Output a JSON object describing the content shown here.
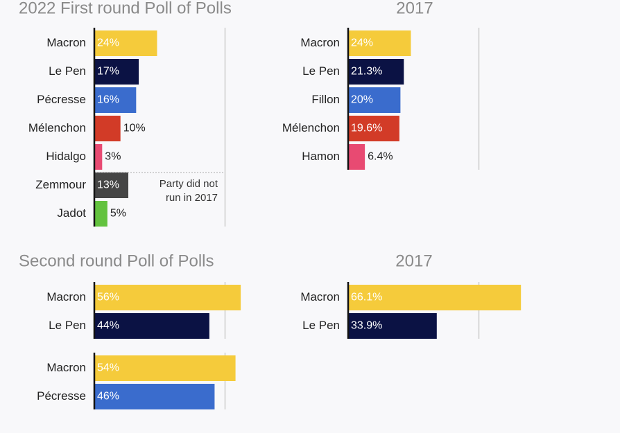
{
  "chart_data": [
    {
      "type": "bar",
      "orientation": "horizontal",
      "title": "2022 First round Poll of Polls",
      "categories": [
        "Macron",
        "Le Pen",
        "Pécresse",
        "Mélenchon",
        "Hidalgo",
        "Zemmour",
        "Jadot"
      ],
      "values": [
        24,
        17,
        16,
        10,
        3,
        13,
        5
      ],
      "value_labels": [
        "24%",
        "17%",
        "16%",
        "10%",
        "3%",
        "13%",
        "5%"
      ],
      "colors": [
        "#f5cb3b",
        "#0b1244",
        "#3a6ccd",
        "#d23b27",
        "#e84a72",
        "#454545",
        "#63c23e"
      ],
      "xlim": [
        0,
        100
      ],
      "reference_line": 50,
      "annotation": [
        "Party did not",
        "run in 2017"
      ]
    },
    {
      "type": "bar",
      "orientation": "horizontal",
      "title": "2017",
      "categories": [
        "Macron",
        "Le Pen",
        "Fillon",
        "Mélenchon",
        "Hamon"
      ],
      "values": [
        24,
        21.3,
        20,
        19.6,
        6.4
      ],
      "value_labels": [
        "24%",
        "21.3%",
        "20%",
        "19.6%",
        "6.4%"
      ],
      "colors": [
        "#f5cb3b",
        "#0b1244",
        "#3a6ccd",
        "#d23b27",
        "#e84a72"
      ],
      "xlim": [
        0,
        100
      ],
      "reference_line": 50
    },
    {
      "type": "bar",
      "orientation": "horizontal",
      "title": "Second round Poll of Polls",
      "categories": [
        "Macron",
        "Le Pen"
      ],
      "values": [
        56,
        44
      ],
      "value_labels": [
        "56%",
        "44%"
      ],
      "colors": [
        "#f5cb3b",
        "#0b1244"
      ],
      "xlim": [
        0,
        100
      ],
      "reference_line": 50
    },
    {
      "type": "bar",
      "orientation": "horizontal",
      "categories": [
        "Macron",
        "Pécresse"
      ],
      "values": [
        54,
        46
      ],
      "value_labels": [
        "54%",
        "46%"
      ],
      "colors": [
        "#f5cb3b",
        "#3a6ccd"
      ],
      "xlim": [
        0,
        100
      ],
      "reference_line": 50
    },
    {
      "type": "bar",
      "orientation": "horizontal",
      "title": "2017",
      "categories": [
        "Macron",
        "Le Pen"
      ],
      "values": [
        66.1,
        33.9
      ],
      "value_labels": [
        "66.1%",
        "33.9%"
      ],
      "colors": [
        "#f5cb3b",
        "#0b1244"
      ],
      "xlim": [
        0,
        100
      ],
      "reference_line": 50
    }
  ]
}
